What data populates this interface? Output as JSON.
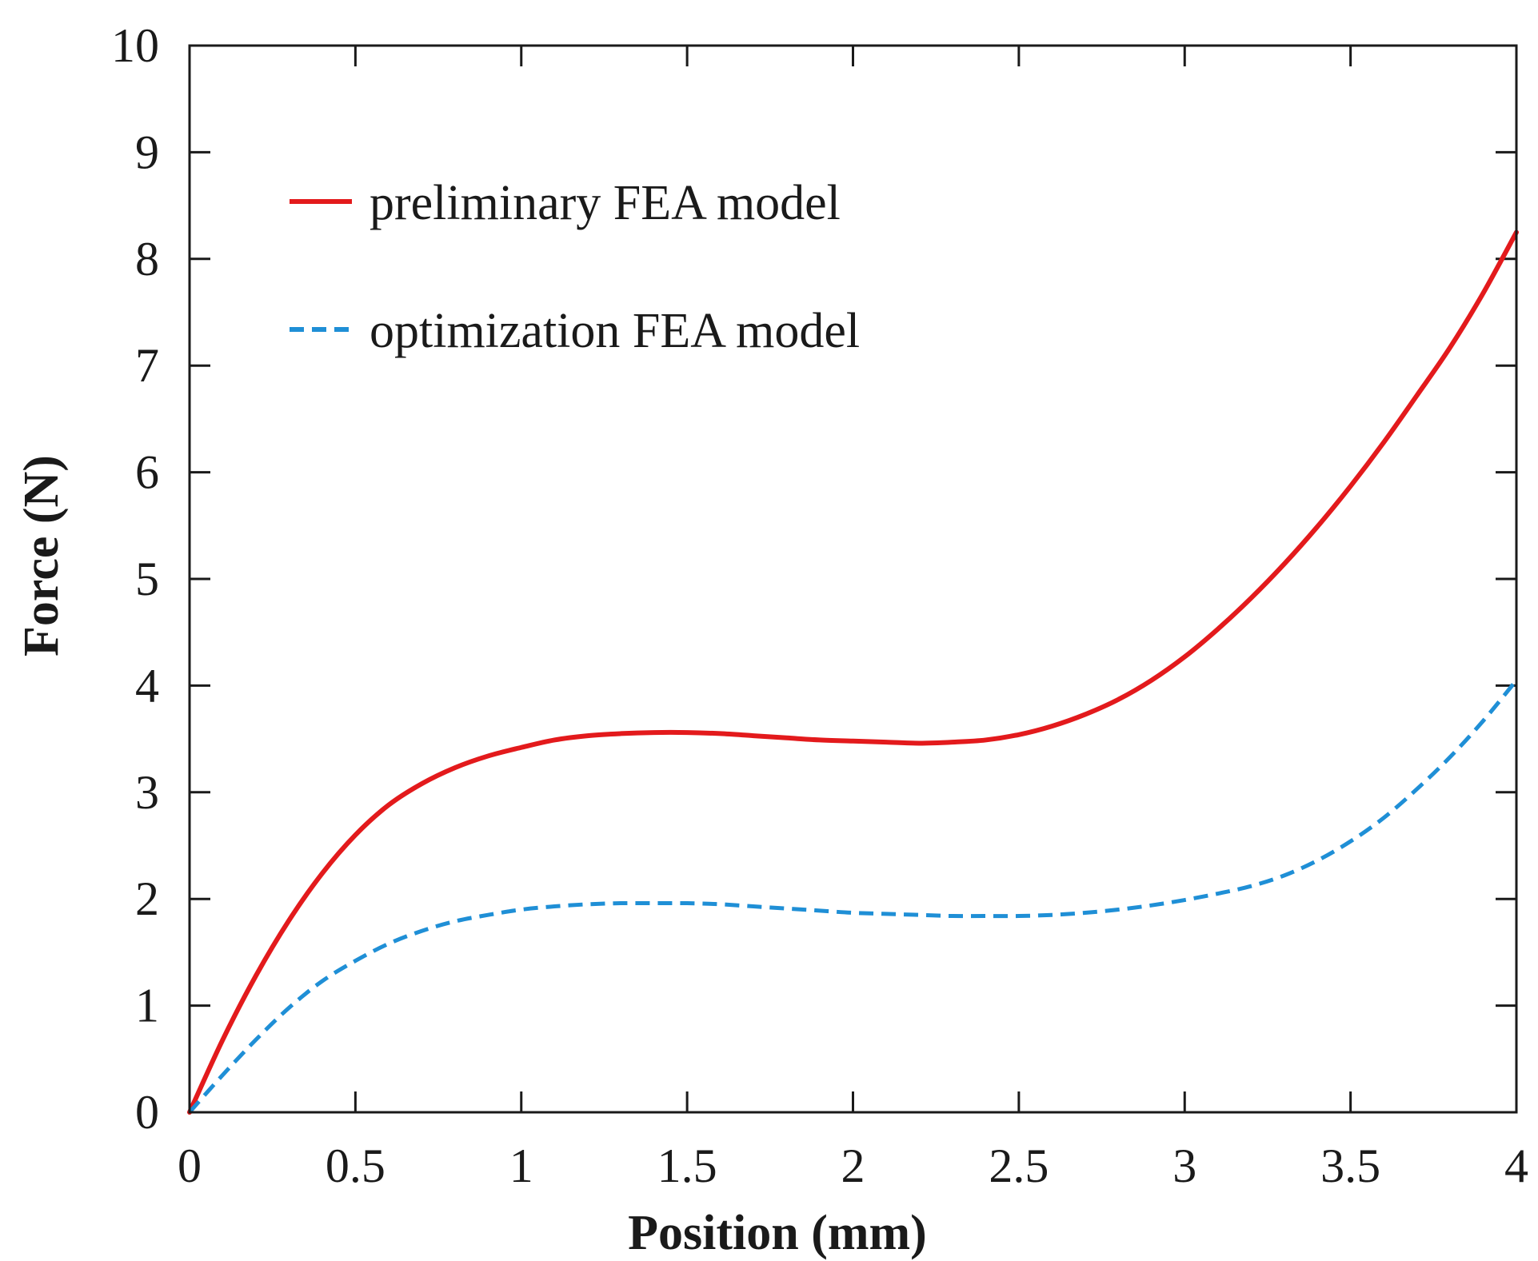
{
  "chart_data": {
    "type": "line",
    "title": "",
    "xlabel": "Position (mm)",
    "ylabel": "Force (N)",
    "xlim": [
      0,
      4
    ],
    "ylim": [
      0,
      10
    ],
    "xticks": [
      0,
      0.5,
      1,
      1.5,
      2,
      2.5,
      3,
      3.5,
      4
    ],
    "xtick_labels": [
      "0",
      "0.5",
      "1",
      "1.5",
      "2",
      "2.5",
      "3",
      "3.5",
      "4"
    ],
    "yticks": [
      0,
      1,
      2,
      3,
      4,
      5,
      6,
      7,
      8,
      9,
      10
    ],
    "ytick_labels": [
      "0",
      "1",
      "2",
      "3",
      "4",
      "5",
      "6",
      "7",
      "8",
      "9",
      "10"
    ],
    "grid": false,
    "legend_position": "top-left",
    "series": [
      {
        "name": "preliminary FEA model",
        "color": "#e31a1c",
        "style": "solid",
        "x": [
          0,
          0.1,
          0.2,
          0.3,
          0.4,
          0.5,
          0.6,
          0.7,
          0.8,
          0.9,
          1.0,
          1.1,
          1.2,
          1.3,
          1.4,
          1.5,
          1.6,
          1.7,
          1.8,
          1.9,
          2.0,
          2.1,
          2.2,
          2.3,
          2.4,
          2.5,
          2.6,
          2.7,
          2.8,
          2.9,
          3.0,
          3.1,
          3.2,
          3.3,
          3.4,
          3.5,
          3.6,
          3.7,
          3.8,
          3.9,
          4.0
        ],
        "y": [
          0,
          0.68,
          1.28,
          1.8,
          2.24,
          2.6,
          2.88,
          3.08,
          3.23,
          3.34,
          3.42,
          3.49,
          3.53,
          3.55,
          3.56,
          3.56,
          3.55,
          3.53,
          3.51,
          3.49,
          3.48,
          3.47,
          3.46,
          3.47,
          3.49,
          3.54,
          3.62,
          3.73,
          3.87,
          4.05,
          4.27,
          4.53,
          4.82,
          5.14,
          5.49,
          5.87,
          6.28,
          6.72,
          7.17,
          7.68,
          8.25
        ]
      },
      {
        "name": "optimization FEA model",
        "color": "#1f8fd6",
        "style": "dashed",
        "x": [
          0,
          0.1,
          0.2,
          0.3,
          0.4,
          0.5,
          0.6,
          0.7,
          0.8,
          0.9,
          1.0,
          1.1,
          1.2,
          1.3,
          1.4,
          1.5,
          1.6,
          1.7,
          1.8,
          1.9,
          2.0,
          2.1,
          2.2,
          2.3,
          2.4,
          2.5,
          2.6,
          2.7,
          2.8,
          2.9,
          3.0,
          3.1,
          3.2,
          3.3,
          3.4,
          3.5,
          3.6,
          3.7,
          3.8,
          3.9,
          4.0
        ],
        "y": [
          0,
          0.35,
          0.68,
          0.98,
          1.23,
          1.42,
          1.58,
          1.7,
          1.79,
          1.85,
          1.9,
          1.93,
          1.95,
          1.96,
          1.96,
          1.96,
          1.95,
          1.93,
          1.91,
          1.89,
          1.87,
          1.86,
          1.85,
          1.84,
          1.84,
          1.84,
          1.85,
          1.87,
          1.9,
          1.94,
          1.99,
          2.05,
          2.12,
          2.22,
          2.36,
          2.54,
          2.76,
          3.03,
          3.33,
          3.67,
          4.05
        ]
      }
    ]
  }
}
